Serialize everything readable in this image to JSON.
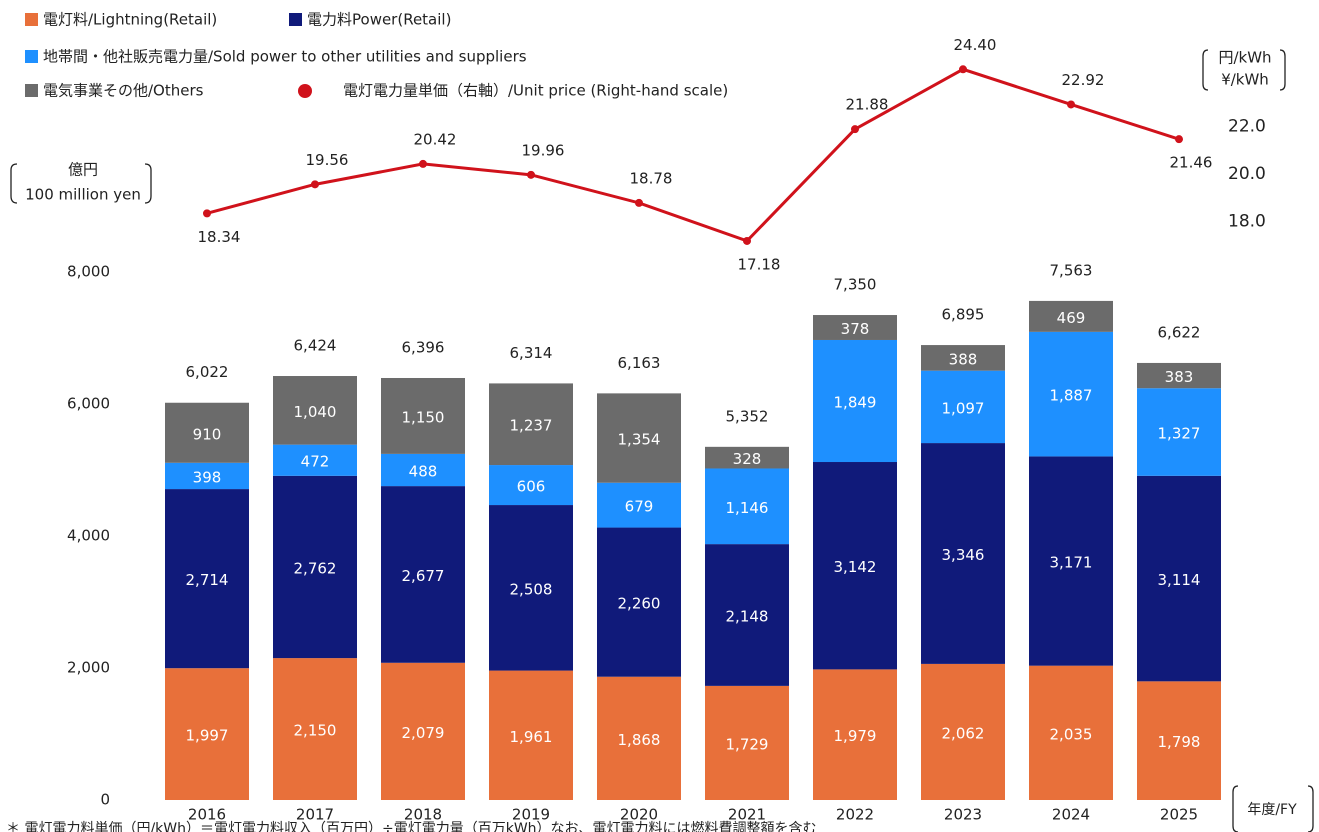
{
  "chart_data": {
    "type": "bar",
    "stacked": true,
    "categories": [
      "2016",
      "2017",
      "2018",
      "2019",
      "2020",
      "2021",
      "2022",
      "2023",
      "2024",
      "2025"
    ],
    "series": [
      {
        "name": "電灯料/Lightning(Retail)",
        "color": "#e8703a",
        "values": [
          1997,
          2150,
          2079,
          1961,
          1868,
          1729,
          1979,
          2062,
          2035,
          1798
        ],
        "value_labels": [
          "1,997",
          "2,150",
          "2,079",
          "1,961",
          "1,868",
          "1,729",
          "1,979",
          "2,062",
          "2,035",
          "1,798"
        ]
      },
      {
        "name": "電力料Power(Retail)",
        "color": "#101a7a",
        "values": [
          2714,
          2762,
          2677,
          2508,
          2260,
          2148,
          3142,
          3346,
          3171,
          3114
        ],
        "value_labels": [
          "2,714",
          "2,762",
          "2,677",
          "2,508",
          "2,260",
          "2,148",
          "3,142",
          "3,346",
          "3,171",
          "3,114"
        ]
      },
      {
        "name": "地帯間・他社販売電力量/Sold power to other utilities and suppliers",
        "color": "#1e90ff",
        "values": [
          398,
          472,
          488,
          606,
          679,
          1146,
          1849,
          1097,
          1887,
          1327
        ],
        "value_labels": [
          "398",
          "472",
          "488",
          "606",
          "679",
          "1,146",
          "1,849",
          "1,097",
          "1,887",
          "1,327"
        ]
      },
      {
        "name": "電気事業その他/Others",
        "color": "#6b6b6b",
        "values": [
          910,
          1040,
          1150,
          1237,
          1354,
          328,
          378,
          388,
          469,
          383
        ],
        "value_labels": [
          "910",
          "1,040",
          "1,150",
          "1,237",
          "1,354",
          "328",
          "378",
          "388",
          "469",
          "383"
        ]
      },
      {
        "name": "電灯電力量単価（右軸）/Unit price (Right-hand scale)",
        "type": "line",
        "axis": "y2",
        "color": "#d0121b",
        "values": [
          18.34,
          19.56,
          20.42,
          19.96,
          18.78,
          17.18,
          21.88,
          24.4,
          22.92,
          21.46
        ],
        "value_labels": [
          "18.34",
          "19.56",
          "20.42",
          "19.96",
          "18.78",
          "17.18",
          "21.88",
          "24.40",
          "22.92",
          "21.46"
        ]
      }
    ],
    "totals": {
      "values": [
        6022,
        6424,
        6396,
        6314,
        6163,
        5352,
        7350,
        6895,
        7563,
        6622
      ],
      "value_labels": [
        "6,022",
        "6,424",
        "6,396",
        "6,314",
        "6,163",
        "5,352",
        "7,350",
        "6,895",
        "7,563",
        "6,622"
      ]
    },
    "ylim": [
      0,
      8000
    ],
    "yticks": [
      0,
      {
        "value": 2000,
        "label": "2,000"
      },
      {
        "value": 4000,
        "label": "4,000"
      },
      {
        "value": 6000,
        "label": "6,000"
      },
      {
        "value": 8000,
        "label": "8,000"
      }
    ],
    "y2lim": [
      16,
      25
    ],
    "y2ticks": [
      {
        "value": 18,
        "label": "18.0"
      },
      {
        "value": 20,
        "label": "20.0"
      },
      {
        "value": 22,
        "label": "22.0"
      }
    ],
    "ylabel": [
      "億円",
      "100 million yen"
    ],
    "y2label": [
      "円/kWh",
      "¥/kWh"
    ],
    "xlabel": "年度/FY",
    "footnote": "＊ 電灯電力料単価（円/kWh）＝電灯電力料収入（百万円）÷電灯電力量（百万kWh）なお、電灯電力料には燃料費調整額を含む"
  }
}
